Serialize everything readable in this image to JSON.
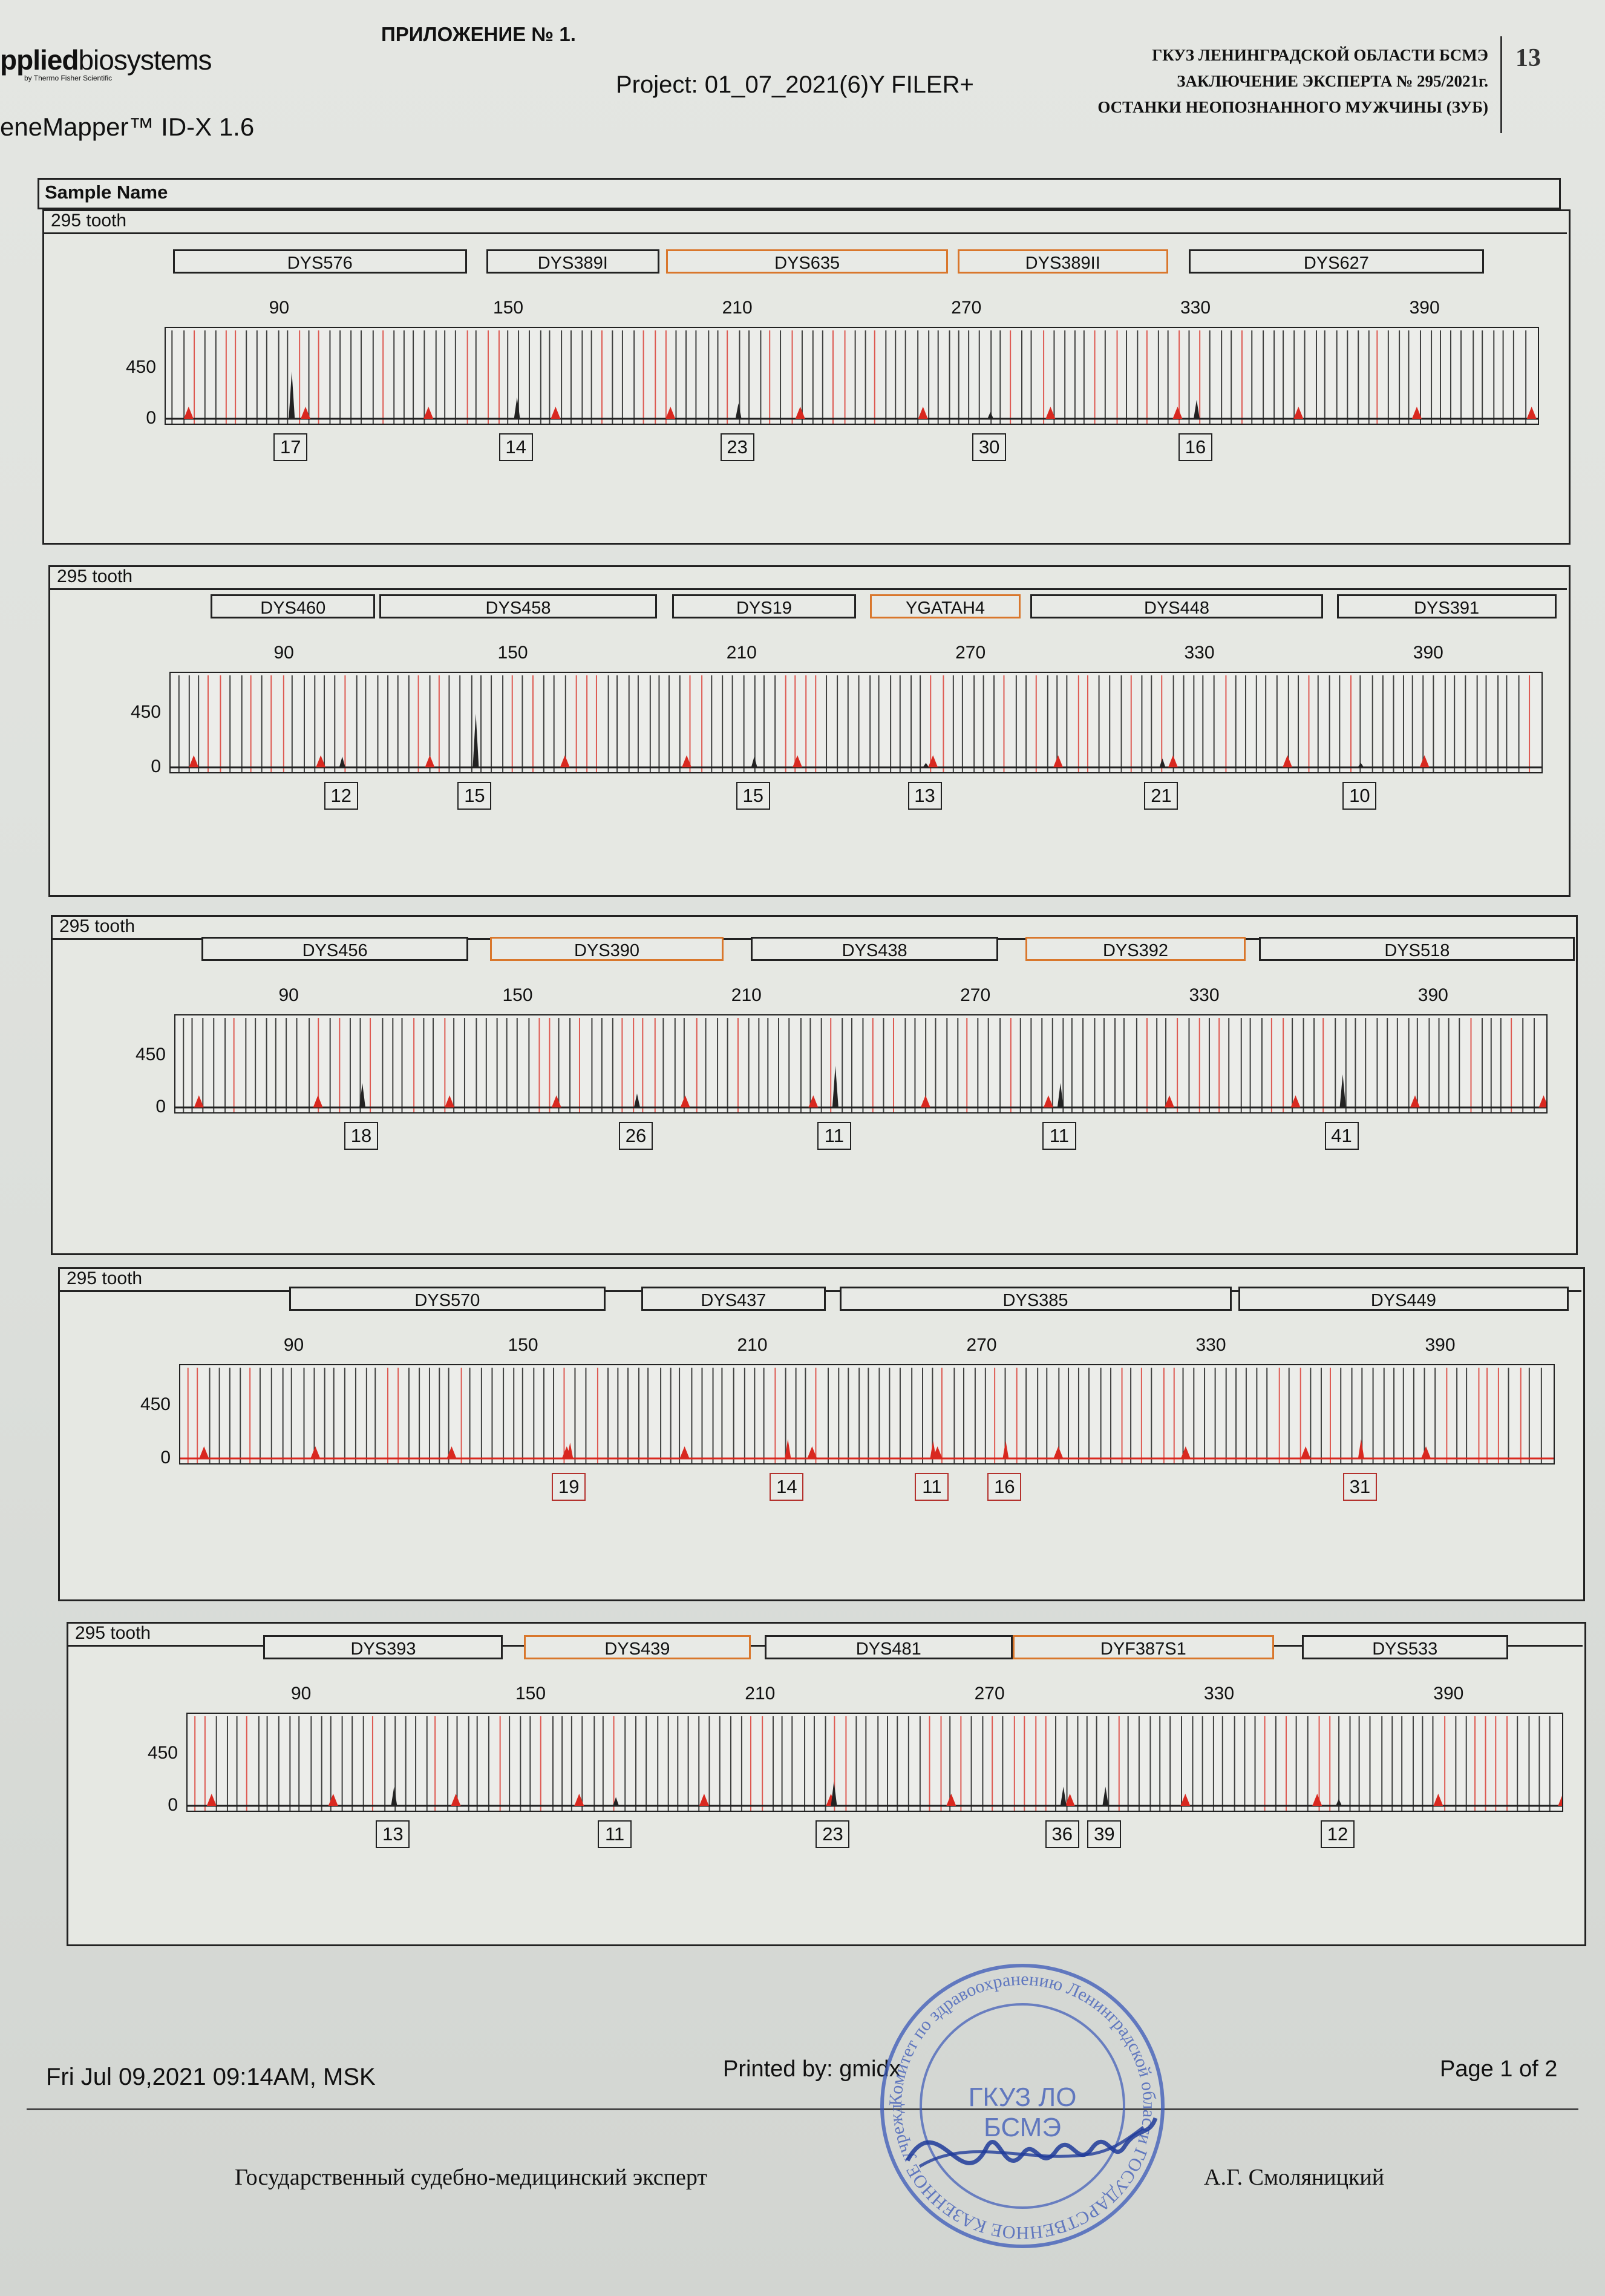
{
  "header": {
    "appendix": "ПРИЛОЖЕНИЕ № 1.",
    "logo_bold": "pplied",
    "logo_rest": "biosystems",
    "logo_sub": "by Thermo Fisher Scientific",
    "app_name": "eneMapper™ ID-X  1.6",
    "project": "Project: 01_07_2021(6)Y FILER+",
    "org_line1": "ГКУЗ ЛЕНИНГРАДСКОЙ ОБЛАСТИ БСМЭ",
    "org_line2": "ЗАКЛЮЧЕНИЕ ЭКСПЕРТА № 295/2021г.",
    "org_line3": "ОСТАНКИ НЕОПОЗНАННОГО МУЖЧИНЫ (ЗУБ)",
    "page_number": "13",
    "sample_name_label": "Sample Name"
  },
  "colors": {
    "peak_dark": "#222222",
    "peak_red": "#d9281f",
    "marker_orange": "#d9772c",
    "stamp_blue": "#3a58b8"
  },
  "axis": {
    "size_ticks": [
      "90",
      "150",
      "210",
      "270",
      "330",
      "390"
    ],
    "y_ticks": [
      "450",
      "0"
    ]
  },
  "panels": [
    {
      "label": "295  tooth",
      "markers": [
        {
          "name": "DYS576",
          "highlight": false
        },
        {
          "name": "DYS389I",
          "highlight": false
        },
        {
          "name": "DYS635",
          "highlight": true
        },
        {
          "name": "DYS389II",
          "highlight": true
        },
        {
          "name": "DYS627",
          "highlight": false
        }
      ],
      "alleles": [
        {
          "value": "17",
          "size": 93,
          "height": 0.55,
          "red": false
        },
        {
          "value": "14",
          "size": 152,
          "height": 0.25,
          "red": false
        },
        {
          "value": "23",
          "size": 210,
          "height": 0.18,
          "red": false
        },
        {
          "value": "30",
          "size": 276,
          "height": 0.08,
          "red": false
        },
        {
          "value": "16",
          "size": 330,
          "height": 0.22,
          "red": false
        }
      ]
    },
    {
      "label": "295  tooth",
      "markers": [
        {
          "name": "DYS460",
          "highlight": false
        },
        {
          "name": "DYS458",
          "highlight": false
        },
        {
          "name": "DYS19",
          "highlight": false
        },
        {
          "name": "YGATAH4",
          "highlight": true
        },
        {
          "name": "DYS448",
          "highlight": false
        },
        {
          "name": "DYS391",
          "highlight": false
        }
      ],
      "alleles": [
        {
          "value": "12",
          "size": 105,
          "height": 0.12,
          "red": false
        },
        {
          "value": "15",
          "size": 140,
          "height": 0.6,
          "red": false
        },
        {
          "value": "15",
          "size": 213,
          "height": 0.12,
          "red": false
        },
        {
          "value": "13",
          "size": 258,
          "height": 0.05,
          "red": false
        },
        {
          "value": "21",
          "size": 320,
          "height": 0.1,
          "red": false
        },
        {
          "value": "10",
          "size": 372,
          "height": 0.05,
          "red": false
        }
      ]
    },
    {
      "label": "295  tooth",
      "markers": [
        {
          "name": "DYS456",
          "highlight": false
        },
        {
          "name": "DYS390",
          "highlight": true
        },
        {
          "name": "DYS438",
          "highlight": false
        },
        {
          "name": "DYS392",
          "highlight": true
        },
        {
          "name": "DYS518",
          "highlight": false
        }
      ],
      "alleles": [
        {
          "value": "18",
          "size": 109,
          "height": 0.28,
          "red": false
        },
        {
          "value": "26",
          "size": 181,
          "height": 0.16,
          "red": false
        },
        {
          "value": "11",
          "size": 233,
          "height": 0.48,
          "red": false
        },
        {
          "value": "11",
          "size": 292,
          "height": 0.28,
          "red": false
        },
        {
          "value": "41",
          "size": 366,
          "height": 0.38,
          "red": false
        }
      ]
    },
    {
      "label": "295  tooth",
      "markers": [
        {
          "name": "DYS570",
          "highlight": false
        },
        {
          "name": "DYS437",
          "highlight": false
        },
        {
          "name": "DYS385",
          "highlight": false
        },
        {
          "name": "DYS449",
          "highlight": false
        }
      ],
      "alleles": [
        {
          "value": "19",
          "size": 162,
          "height": 0.18,
          "red": true
        },
        {
          "value": "14",
          "size": 219,
          "height": 0.22,
          "red": true
        },
        {
          "value": "11",
          "size": 257,
          "height": 0.2,
          "red": true
        },
        {
          "value": "16",
          "size": 276,
          "height": 0.2,
          "red": true
        },
        {
          "value": "31",
          "size": 369,
          "height": 0.22,
          "red": true
        }
      ]
    },
    {
      "label": "295  tooth",
      "markers": [
        {
          "name": "DYS393",
          "highlight": false
        },
        {
          "name": "DYS439",
          "highlight": true
        },
        {
          "name": "DYS481",
          "highlight": false
        },
        {
          "name": "DYF387S1",
          "highlight": true
        },
        {
          "name": "DYS533",
          "highlight": false
        }
      ],
      "alleles": [
        {
          "value": "13",
          "size": 114,
          "height": 0.22,
          "red": false
        },
        {
          "value": "11",
          "size": 172,
          "height": 0.1,
          "red": false
        },
        {
          "value": "23",
          "size": 229,
          "height": 0.28,
          "red": false
        },
        {
          "value": "36",
          "size": 289,
          "height": 0.22,
          "red": false
        },
        {
          "value": "39",
          "size": 300,
          "height": 0.22,
          "red": false
        },
        {
          "value": "12",
          "size": 361,
          "height": 0.08,
          "red": false
        }
      ]
    }
  ],
  "footer": {
    "date": "Fri Jul 09,2021 09:14AM, MSK",
    "printed_by": "Printed by: gmidx",
    "page": "Page 1 of 2",
    "signature_title": "Государственный судебно-медицинский эксперт",
    "signature_name": "А.Г. Смоляницкий"
  },
  "stamp": {
    "ring_text": "Комитет по здравоохранению Ленинградской области ГОСУДАРСТВЕННОЕ КАЗЕННОЕ учреждение здравоохранения Ленинградской области Бюро судебно-медицинской экспертизы",
    "center_line1": "ГКУЗ  ЛО",
    "center_line2": "БСМЭ"
  }
}
